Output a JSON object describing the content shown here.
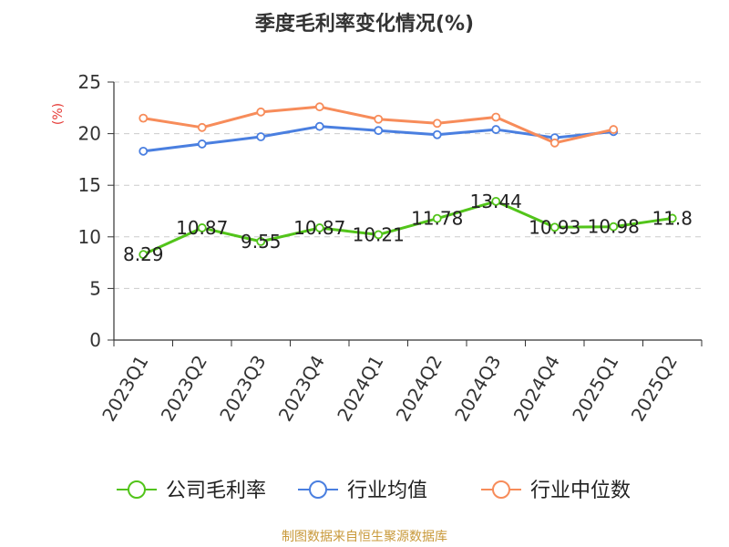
{
  "chart_data": {
    "type": "line",
    "title": "季度毛利率变化情况(%)",
    "ylabel": "(%)",
    "xlabel": "",
    "ylim": [
      0,
      25
    ],
    "yticks": [
      0,
      5,
      10,
      15,
      20,
      25
    ],
    "grid": true,
    "legend_position": "bottom",
    "categories": [
      "2023Q1",
      "2023Q2",
      "2023Q3",
      "2023Q4",
      "2024Q1",
      "2024Q2",
      "2024Q3",
      "2024Q4",
      "2025Q1",
      "2025Q2"
    ],
    "series": [
      {
        "name": "公司毛利率",
        "color": "#52c41a",
        "values": [
          8.29,
          10.87,
          9.55,
          10.87,
          10.21,
          11.78,
          13.44,
          10.93,
          10.98,
          11.8
        ],
        "labels": [
          "8.29",
          "10.87",
          "9.55",
          "10.87",
          "10.21",
          "11.78",
          "13.44",
          "10.93",
          "10.98",
          "11.8"
        ],
        "show_labels": true
      },
      {
        "name": "行业均值",
        "color": "#4a7fe0",
        "values": [
          18.3,
          19.0,
          19.7,
          20.7,
          20.3,
          19.9,
          20.4,
          19.6,
          20.2,
          null
        ],
        "show_labels": false
      },
      {
        "name": "行业中位数",
        "color": "#f78c5a",
        "values": [
          21.5,
          20.6,
          22.1,
          22.6,
          21.4,
          21.0,
          21.6,
          19.1,
          20.4,
          null
        ],
        "show_labels": false
      }
    ]
  },
  "source": "制图数据来自恒生聚源数据库"
}
